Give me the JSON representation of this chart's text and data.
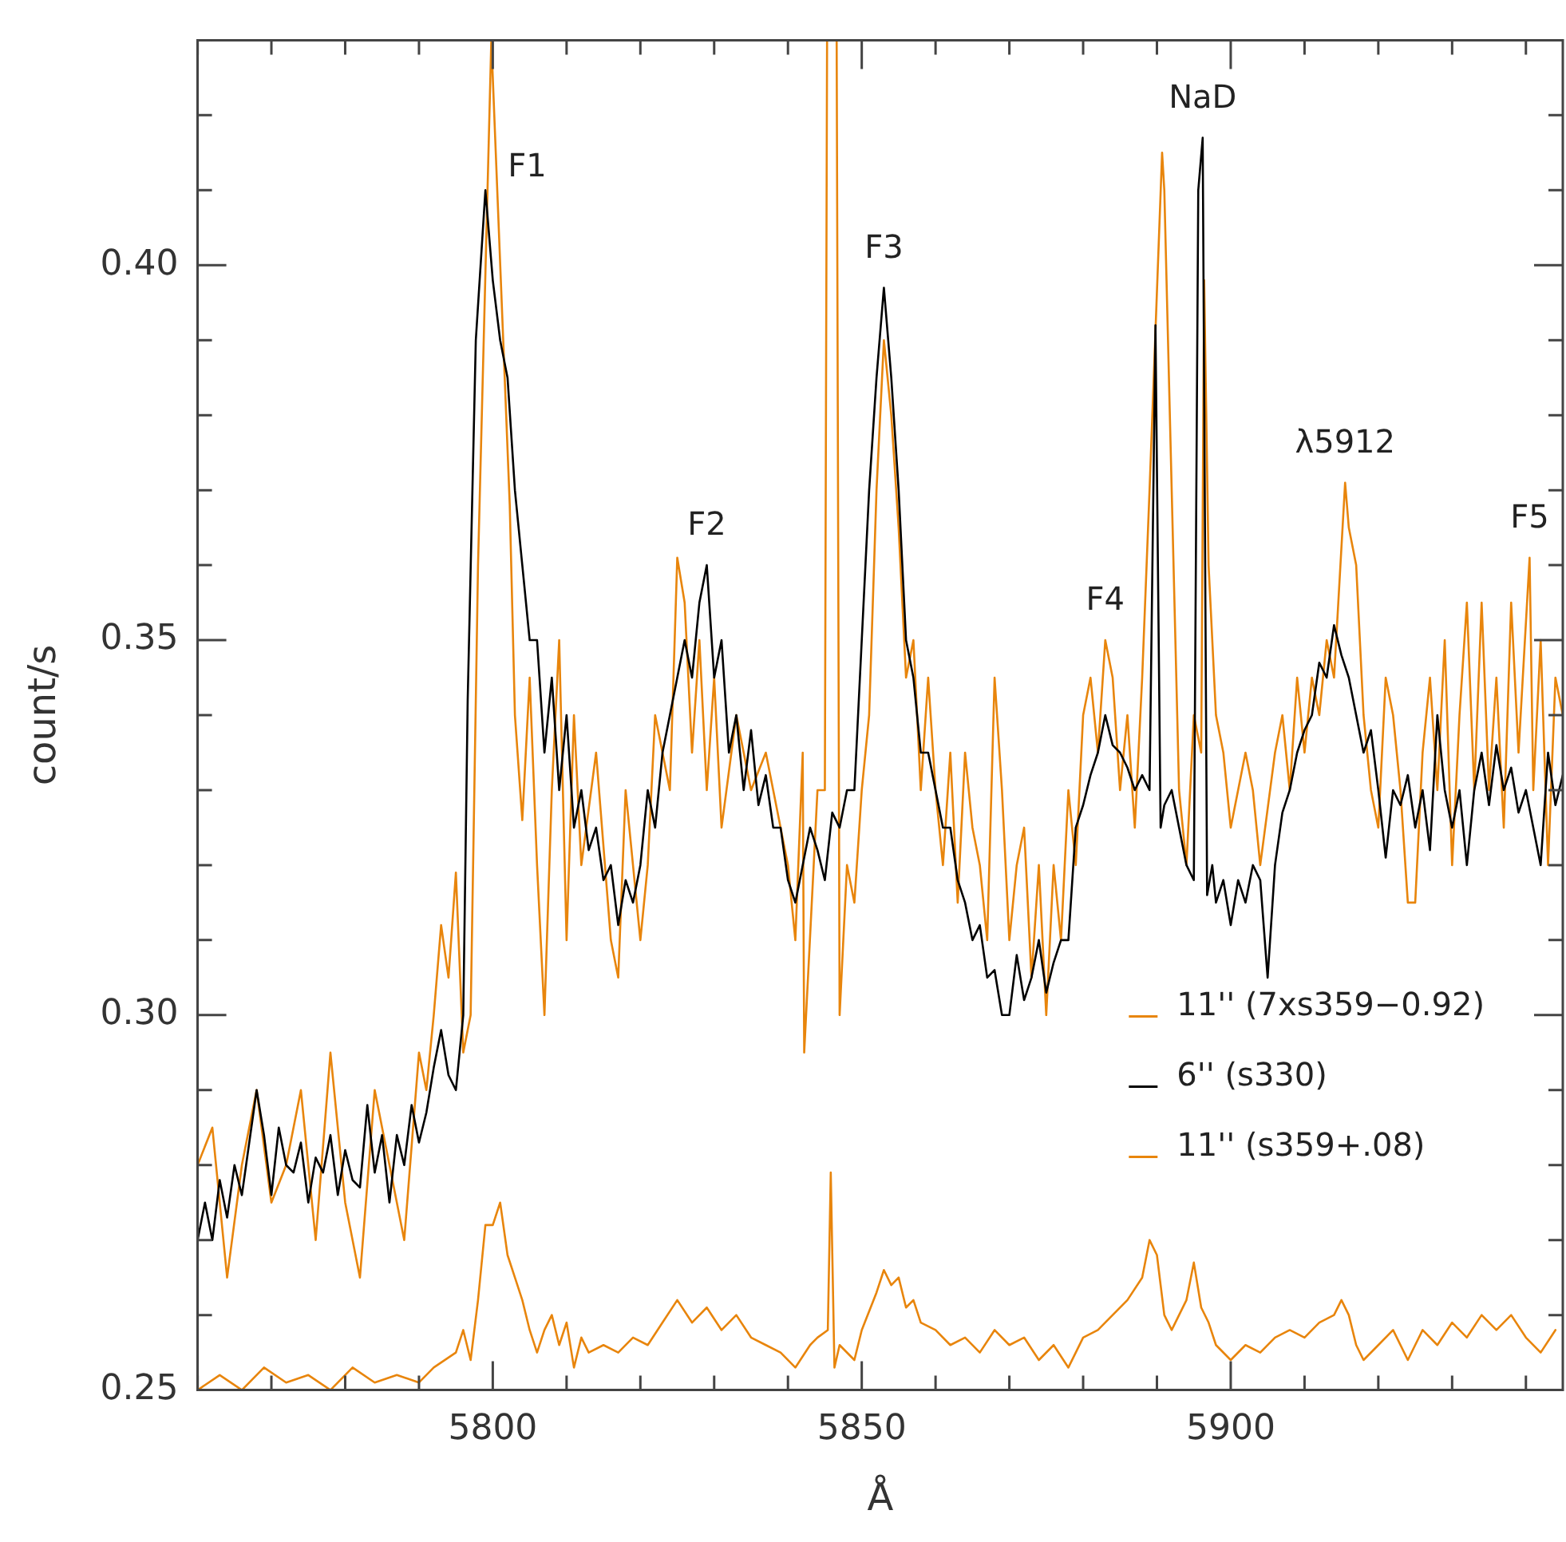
{
  "chart_data": {
    "type": "line",
    "xlabel": "Å",
    "ylabel": "count/s",
    "xlim": [
      5760,
      5945
    ],
    "xticks": [
      {
        "value": 5760,
        "label": null
      },
      {
        "value": 5770,
        "label": null
      },
      {
        "value": 5780,
        "label": null
      },
      {
        "value": 5790,
        "label": null
      },
      5800,
      {
        "value": 5810,
        "label": null
      },
      {
        "value": 5820,
        "label": null
      },
      {
        "value": 5830,
        "label": null
      },
      {
        "value": 5840,
        "label": null
      },
      5850,
      {
        "value": 5860,
        "label": null
      },
      {
        "value": 5870,
        "label": null
      },
      {
        "value": 5880,
        "label": null
      },
      {
        "value": 5890,
        "label": null
      },
      5900,
      {
        "value": 5910,
        "label": null
      },
      {
        "value": 5920,
        "label": null
      },
      {
        "value": 5930,
        "label": null
      },
      {
        "value": 5940,
        "label": null
      }
    ],
    "ylim": [
      0.25,
      0.43
    ],
    "yticks": [
      {
        "value": 0.25,
        "label": "0.25"
      },
      {
        "value": 0.26,
        "label": null
      },
      {
        "value": 0.27,
        "label": null
      },
      {
        "value": 0.28,
        "label": null
      },
      {
        "value": 0.29,
        "label": null
      },
      {
        "value": 0.3,
        "label": "0.30"
      },
      {
        "value": 0.31,
        "label": null
      },
      {
        "value": 0.32,
        "label": null
      },
      {
        "value": 0.33,
        "label": null
      },
      {
        "value": 0.34,
        "label": null
      },
      {
        "value": 0.35,
        "label": "0.35"
      },
      {
        "value": 0.36,
        "label": null
      },
      {
        "value": 0.37,
        "label": null
      },
      {
        "value": 0.38,
        "label": null
      },
      {
        "value": 0.39,
        "label": null
      },
      {
        "value": 0.4,
        "label": "0.40"
      },
      {
        "value": 0.41,
        "label": null
      },
      {
        "value": 0.42,
        "label": null
      },
      {
        "value": 0.43,
        "label": null
      }
    ],
    "legend": "bottom right",
    "marker": "none",
    "series": [
      {
        "name": "11'' (7xs359−0.92)",
        "color": "#e8850c",
        "x": [
          5760,
          5762,
          5764,
          5766,
          5768,
          5770,
          5772,
          5774,
          5776,
          5778,
          5780,
          5782,
          5784,
          5786,
          5788,
          5790,
          5791,
          5792,
          5793,
          5794,
          5795,
          5796,
          5797,
          5798,
          5799.8,
          5802.3,
          5803,
          5804,
          5805,
          5806,
          5807,
          5808,
          5809,
          5810,
          5811,
          5812,
          5814,
          5816,
          5817,
          5818,
          5820,
          5821,
          5822,
          5824,
          5825,
          5826,
          5827,
          5828,
          5829,
          5830,
          5831,
          5833,
          5835,
          5837,
          5838,
          5840,
          5841,
          5842,
          5842.2,
          5844,
          5845,
          5845.3,
          5846.6,
          5847,
          5848,
          5849,
          5850,
          5851,
          5852,
          5853,
          5854,
          5855,
          5856,
          5857,
          5858,
          5859,
          5860,
          5861,
          5862,
          5863,
          5864,
          5865,
          5866,
          5867,
          5868,
          5869,
          5870,
          5871,
          5872,
          5873,
          5874,
          5875,
          5876,
          5877,
          5878,
          5879,
          5880,
          5881,
          5882,
          5883,
          5884,
          5885,
          5886,
          5887,
          5888,
          5889,
          5890.7,
          5891,
          5892,
          5893,
          5894,
          5895,
          5896,
          5896.4,
          5897,
          5898,
          5899,
          5900,
          5902,
          5903,
          5904,
          5906,
          5907,
          5908,
          5909,
          5910,
          5911,
          5912,
          5913,
          5914,
          5915.5,
          5916,
          5917,
          5918,
          5919,
          5920,
          5921,
          5922,
          5923,
          5924,
          5925,
          5926,
          5927,
          5928,
          5929,
          5930,
          5931,
          5932,
          5933,
          5934,
          5935,
          5936,
          5937,
          5938,
          5939,
          5940.5,
          5941,
          5942,
          5943,
          5944,
          5945
        ],
        "values": [
          0.28,
          0.285,
          0.265,
          0.28,
          0.29,
          0.275,
          0.28,
          0.29,
          0.27,
          0.295,
          0.275,
          0.265,
          0.29,
          0.28,
          0.27,
          0.295,
          0.29,
          0.3,
          0.312,
          0.305,
          0.319,
          0.295,
          0.3,
          0.36,
          0.43,
          0.368,
          0.34,
          0.326,
          0.345,
          0.32,
          0.3,
          0.33,
          0.35,
          0.31,
          0.34,
          0.32,
          0.335,
          0.31,
          0.305,
          0.33,
          0.31,
          0.32,
          0.34,
          0.33,
          0.361,
          0.355,
          0.335,
          0.35,
          0.33,
          0.345,
          0.325,
          0.34,
          0.33,
          0.335,
          0.33,
          0.32,
          0.31,
          0.335,
          0.295,
          0.33,
          0.33,
          0.43,
          0.43,
          0.3,
          0.32,
          0.315,
          0.33,
          0.34,
          0.37,
          0.39,
          0.38,
          0.365,
          0.345,
          0.35,
          0.33,
          0.345,
          0.33,
          0.32,
          0.335,
          0.315,
          0.335,
          0.325,
          0.32,
          0.31,
          0.345,
          0.33,
          0.31,
          0.32,
          0.325,
          0.305,
          0.32,
          0.3,
          0.32,
          0.31,
          0.33,
          0.32,
          0.34,
          0.345,
          0.335,
          0.35,
          0.345,
          0.33,
          0.34,
          0.325,
          0.345,
          0.37,
          0.415,
          0.41,
          0.37,
          0.33,
          0.32,
          0.34,
          0.335,
          0.398,
          0.36,
          0.34,
          0.335,
          0.325,
          0.335,
          0.33,
          0.32,
          0.335,
          0.34,
          0.33,
          0.345,
          0.335,
          0.345,
          0.34,
          0.35,
          0.345,
          0.371,
          0.365,
          0.36,
          0.34,
          0.33,
          0.325,
          0.345,
          0.34,
          0.33,
          0.315,
          0.315,
          0.335,
          0.345,
          0.33,
          0.35,
          0.32,
          0.34,
          0.355,
          0.33,
          0.355,
          0.33,
          0.345,
          0.325,
          0.355,
          0.335,
          0.361,
          0.33,
          0.35,
          0.32,
          0.345,
          0.34
        ]
      },
      {
        "name": "6'' (s330)",
        "color": "#000000",
        "x": [
          5760,
          5761,
          5762,
          5763,
          5764,
          5765,
          5766,
          5767,
          5768,
          5769,
          5770,
          5771,
          5772,
          5773,
          5774,
          5775,
          5776,
          5777,
          5778,
          5779,
          5780,
          5781,
          5782,
          5783,
          5784,
          5785,
          5786,
          5787,
          5788,
          5789,
          5790,
          5791,
          5792,
          5793,
          5794,
          5795,
          5796,
          5796.6,
          5797.7,
          5799,
          5800,
          5801,
          5802,
          5803,
          5804,
          5805,
          5806,
          5807,
          5808,
          5809,
          5810,
          5811,
          5812,
          5813,
          5814,
          5815,
          5816,
          5817,
          5818,
          5819,
          5820,
          5821,
          5822,
          5823,
          5824,
          5825,
          5826,
          5827,
          5828,
          5829,
          5830,
          5831,
          5832,
          5833,
          5834,
          5835,
          5836,
          5837,
          5838,
          5839,
          5840,
          5841,
          5842,
          5843,
          5844,
          5845,
          5846,
          5847,
          5848,
          5849,
          5850,
          5851,
          5852,
          5853,
          5854,
          5855,
          5856,
          5857,
          5858,
          5859,
          5860,
          5861,
          5862,
          5863,
          5864,
          5865,
          5866,
          5867,
          5868,
          5869,
          5870,
          5871,
          5872,
          5873,
          5874,
          5875,
          5876,
          5877,
          5878,
          5879,
          5880,
          5881,
          5882,
          5883,
          5884,
          5885,
          5886,
          5887,
          5888,
          5889,
          5889.8,
          5890.5,
          5891,
          5892,
          5893,
          5894,
          5895,
          5895.6,
          5896.2,
          5896.8,
          5897.5,
          5898,
          5899,
          5900,
          5901,
          5902,
          5903,
          5904,
          5905,
          5906,
          5907,
          5908,
          5909,
          5910,
          5911,
          5912,
          5913,
          5914,
          5915,
          5916,
          5917,
          5918,
          5919,
          5920,
          5921,
          5922,
          5923,
          5924,
          5925,
          5926,
          5927,
          5928,
          5929,
          5930,
          5931,
          5932,
          5933,
          5934,
          5935,
          5936,
          5937,
          5938,
          5939,
          5940,
          5941,
          5942,
          5943,
          5944,
          5945
        ],
        "values": [
          0.27,
          0.275,
          0.27,
          0.278,
          0.273,
          0.28,
          0.276,
          0.283,
          0.29,
          0.284,
          0.276,
          0.285,
          0.28,
          0.279,
          0.283,
          0.275,
          0.281,
          0.279,
          0.284,
          0.276,
          0.282,
          0.278,
          0.277,
          0.288,
          0.279,
          0.284,
          0.275,
          0.284,
          0.28,
          0.288,
          0.283,
          0.287,
          0.293,
          0.298,
          0.292,
          0.29,
          0.3,
          0.342,
          0.39,
          0.41,
          0.398,
          0.39,
          0.385,
          0.37,
          0.36,
          0.35,
          0.35,
          0.335,
          0.345,
          0.33,
          0.34,
          0.325,
          0.33,
          0.322,
          0.325,
          0.318,
          0.32,
          0.312,
          0.318,
          0.315,
          0.32,
          0.33,
          0.325,
          0.335,
          0.34,
          0.345,
          0.35,
          0.345,
          0.355,
          0.36,
          0.345,
          0.35,
          0.335,
          0.34,
          0.33,
          0.338,
          0.328,
          0.332,
          0.325,
          0.325,
          0.318,
          0.315,
          0.32,
          0.325,
          0.322,
          0.318,
          0.327,
          0.325,
          0.33,
          0.33,
          0.35,
          0.37,
          0.385,
          0.397,
          0.385,
          0.37,
          0.35,
          0.345,
          0.335,
          0.335,
          0.33,
          0.325,
          0.325,
          0.318,
          0.315,
          0.31,
          0.312,
          0.305,
          0.306,
          0.3,
          0.3,
          0.308,
          0.302,
          0.305,
          0.31,
          0.303,
          0.307,
          0.31,
          0.31,
          0.325,
          0.328,
          0.332,
          0.335,
          0.34,
          0.336,
          0.335,
          0.333,
          0.33,
          0.332,
          0.33,
          0.392,
          0.325,
          0.328,
          0.33,
          0.325,
          0.32,
          0.318,
          0.41,
          0.417,
          0.316,
          0.32,
          0.315,
          0.318,
          0.312,
          0.318,
          0.315,
          0.32,
          0.318,
          0.305,
          0.32,
          0.327,
          0.33,
          0.335,
          0.338,
          0.34,
          0.347,
          0.345,
          0.352,
          0.348,
          0.345,
          0.34,
          0.335,
          0.338,
          0.33,
          0.321,
          0.33,
          0.328,
          0.332,
          0.325,
          0.33,
          0.322,
          0.34,
          0.33,
          0.325,
          0.33,
          0.32,
          0.33,
          0.335,
          0.328,
          0.336,
          0.33,
          0.333,
          0.327,
          0.33,
          0.325,
          0.32,
          0.335,
          0.328,
          0.332
        ]
      },
      {
        "name": "11'' (s359+.08)",
        "color": "#e8850c",
        "x": [
          5760,
          5763,
          5766,
          5769,
          5772,
          5775,
          5778,
          5781,
          5784,
          5787,
          5790,
          5792,
          5795,
          5796,
          5797,
          5798,
          5799,
          5800,
          5801,
          5802,
          5803,
          5804,
          5805,
          5806,
          5807,
          5808,
          5809,
          5810,
          5811,
          5812,
          5813,
          5815,
          5817,
          5819,
          5821,
          5823,
          5825,
          5827,
          5829,
          5831,
          5833,
          5835,
          5837,
          5839,
          5841,
          5843,
          5844,
          5845.4,
          5845.8,
          5846.3,
          5847,
          5849,
          5850,
          5852,
          5853,
          5854,
          5855,
          5856,
          5857,
          5858,
          5860,
          5862,
          5864,
          5866,
          5868,
          5870,
          5872,
          5874,
          5876,
          5878,
          5880,
          5882,
          5884,
          5886,
          5888,
          5889,
          5890,
          5891,
          5892,
          5893,
          5894,
          5895,
          5896,
          5897,
          5898,
          5900,
          5902,
          5904,
          5906,
          5908,
          5910,
          5912,
          5914,
          5915,
          5916,
          5917,
          5918,
          5920,
          5922,
          5924,
          5926,
          5928,
          5930,
          5932,
          5934,
          5936,
          5938,
          5940,
          5942,
          5944
        ],
        "values": [
          0.25,
          0.252,
          0.25,
          0.253,
          0.251,
          0.252,
          0.25,
          0.253,
          0.251,
          0.252,
          0.251,
          0.253,
          0.255,
          0.258,
          0.254,
          0.262,
          0.272,
          0.272,
          0.275,
          0.268,
          0.265,
          0.262,
          0.258,
          0.255,
          0.258,
          0.26,
          0.256,
          0.259,
          0.253,
          0.257,
          0.255,
          0.256,
          0.255,
          0.257,
          0.256,
          0.259,
          0.262,
          0.259,
          0.261,
          0.258,
          0.26,
          0.257,
          0.256,
          0.255,
          0.253,
          0.256,
          0.257,
          0.258,
          0.279,
          0.253,
          0.256,
          0.254,
          0.258,
          0.263,
          0.266,
          0.264,
          0.265,
          0.261,
          0.262,
          0.259,
          0.258,
          0.256,
          0.257,
          0.255,
          0.258,
          0.256,
          0.257,
          0.254,
          0.256,
          0.253,
          0.257,
          0.258,
          0.26,
          0.262,
          0.265,
          0.27,
          0.268,
          0.26,
          0.258,
          0.26,
          0.262,
          0.267,
          0.261,
          0.259,
          0.256,
          0.254,
          0.256,
          0.255,
          0.257,
          0.258,
          0.257,
          0.259,
          0.26,
          0.262,
          0.26,
          0.256,
          0.254,
          0.256,
          0.258,
          0.254,
          0.258,
          0.256,
          0.259,
          0.257,
          0.26,
          0.258,
          0.26,
          0.257,
          0.255,
          0.258
        ]
      }
    ],
    "annotations": [
      {
        "text": "F1",
        "x": 5799,
        "y": 0.41
      },
      {
        "text": "F2",
        "x": 5829,
        "y": 0.36
      },
      {
        "text": "F3",
        "x": 5853,
        "y": 0.397
      },
      {
        "text": "F4",
        "x": 5883,
        "y": 0.35
      },
      {
        "text": "NaD",
        "x": 5896.2,
        "y": 0.417
      },
      {
        "text": "λ5912",
        "x": 5915.5,
        "y": 0.371
      },
      {
        "text": "F5",
        "x": 5940.5,
        "y": 0.361
      }
    ]
  }
}
